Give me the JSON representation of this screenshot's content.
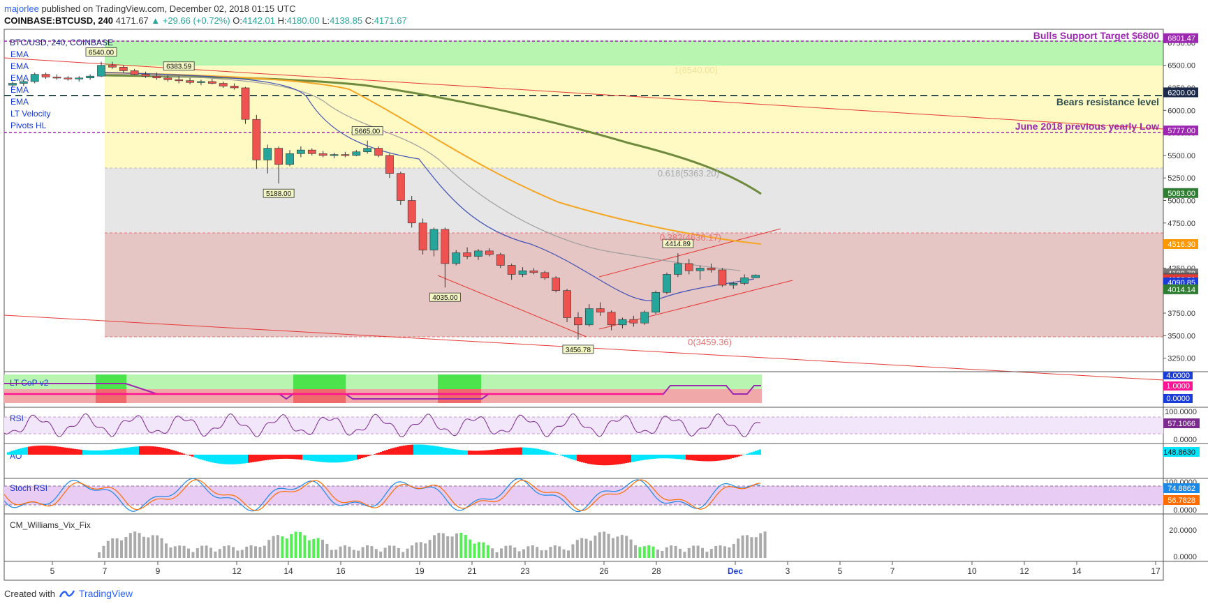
{
  "header": {
    "author": "majorlee",
    "published": "published on TradingView.com, December 02, 2018 01:15 UTC",
    "symbol": "COINBASE:BTCUSD, 240",
    "last": "4171.67",
    "change": "▲ +29.66 (+0.72%)",
    "o_label": "O:",
    "o": "4142.01",
    "h_label": "H:",
    "h": "4180.00",
    "l_label": "L:",
    "l": "4138.85",
    "c_label": "C:",
    "c": "4171.67"
  },
  "footer": {
    "created_with": "Created with",
    "brand": "TradingView"
  },
  "chart_data": {
    "type": "candlestick",
    "title": "BTC/USD, 240, COINBASE",
    "legend": [
      "EMA",
      "EMA",
      "EMA",
      "EMA",
      "EMA",
      "LT Velocity",
      "Pivots HL"
    ],
    "ylim": [
      3100,
      6900
    ],
    "price_ticks": [
      "6750.00",
      "6500.00",
      "6250.00",
      "6000.00",
      "5750.00",
      "5500.00",
      "5250.00",
      "5000.00",
      "4750.00",
      "4500.00",
      "4250.00",
      "4000.00",
      "3750.00",
      "3500.00",
      "3250.00"
    ],
    "price_tick_values": [
      6750,
      6500,
      6250,
      6000,
      5750,
      5500,
      5250,
      5000,
      4750,
      4500,
      4250,
      4000,
      3750,
      3500,
      3250
    ],
    "x_ticks": [
      "5",
      "7",
      "9",
      "12",
      "14",
      "16",
      "19",
      "21",
      "23",
      "26",
      "28",
      "Dec",
      "3",
      "5",
      "7",
      "10",
      "12",
      "14",
      "17"
    ],
    "annotations": {
      "bulls": "Bulls Support Target $6800",
      "bears": "Bears resistance level",
      "june": "June 2018 previous yearly Low",
      "fib1": "1(6540.00)",
      "fib618": "0.618(5363.20)",
      "fib382": "0.382(4636.17)",
      "fib0": "0(3459.36)"
    },
    "pivot_labels": [
      "6540.00",
      "6383.59",
      "5188.00",
      "5665.00",
      "4035.00",
      "3456.78",
      "4414.89"
    ],
    "pivot_values": [
      6540,
      6383.59,
      5188,
      5665,
      4035,
      3456.78,
      4414.89
    ],
    "price_badges": [
      {
        "text": "6801.47",
        "value": 6801.47,
        "color": "#9c27b0"
      },
      {
        "text": "6200.00",
        "value": 6200,
        "color": "#1b2a4a"
      },
      {
        "text": "5777.00",
        "value": 5777,
        "color": "#9c27b0"
      },
      {
        "text": "5083.00",
        "value": 5083,
        "color": "#2e7d32"
      },
      {
        "text": "4516.30",
        "value": 4516.3,
        "color": "#ff9800"
      },
      {
        "text": "4189.78",
        "value": 4189.78,
        "color": "#777777"
      },
      {
        "text": "4142.01",
        "value": 4142.01,
        "color": "#555555"
      },
      {
        "text": "4126.31",
        "value": 4126.31,
        "color": "#e53935"
      },
      {
        "text": "4090.85",
        "value": 4090.85,
        "color": "#1a3cd8"
      },
      {
        "text": "4014.14",
        "value": 4014.14,
        "color": "#2e7d32"
      }
    ],
    "candles": [
      [
        6280,
        6320,
        6260,
        6300
      ],
      [
        6300,
        6340,
        6270,
        6320
      ],
      [
        6320,
        6420,
        6300,
        6400
      ],
      [
        6400,
        6420,
        6350,
        6370
      ],
      [
        6370,
        6400,
        6340,
        6360
      ],
      [
        6360,
        6380,
        6330,
        6350
      ],
      [
        6350,
        6380,
        6320,
        6360
      ],
      [
        6360,
        6400,
        6340,
        6380
      ],
      [
        6380,
        6540,
        6370,
        6500
      ],
      [
        6500,
        6540,
        6460,
        6480
      ],
      [
        6480,
        6500,
        6420,
        6440
      ],
      [
        6440,
        6460,
        6390,
        6400
      ],
      [
        6400,
        6430,
        6360,
        6380
      ],
      [
        6380,
        6420,
        6340,
        6360
      ],
      [
        6360,
        6390,
        6320,
        6340
      ],
      [
        6340,
        6383,
        6300,
        6330
      ],
      [
        6330,
        6360,
        6290,
        6310
      ],
      [
        6310,
        6340,
        6280,
        6320
      ],
      [
        6320,
        6350,
        6290,
        6300
      ],
      [
        6300,
        6320,
        6250,
        6270
      ],
      [
        6270,
        6300,
        6230,
        6250
      ],
      [
        6250,
        6260,
        5850,
        5900
      ],
      [
        5900,
        5950,
        5350,
        5450
      ],
      [
        5450,
        5620,
        5300,
        5580
      ],
      [
        5580,
        5600,
        5188,
        5400
      ],
      [
        5400,
        5560,
        5380,
        5520
      ],
      [
        5520,
        5600,
        5480,
        5560
      ],
      [
        5560,
        5580,
        5500,
        5520
      ],
      [
        5520,
        5550,
        5480,
        5500
      ],
      [
        5500,
        5530,
        5470,
        5510
      ],
      [
        5510,
        5540,
        5480,
        5500
      ],
      [
        5500,
        5560,
        5490,
        5540
      ],
      [
        5540,
        5665,
        5520,
        5580
      ],
      [
        5580,
        5600,
        5480,
        5500
      ],
      [
        5500,
        5520,
        5250,
        5300
      ],
      [
        5300,
        5320,
        4950,
        5000
      ],
      [
        5000,
        5050,
        4700,
        4750
      ],
      [
        4750,
        4800,
        4400,
        4450
      ],
      [
        4450,
        4700,
        4380,
        4680
      ],
      [
        4680,
        4700,
        4035,
        4300
      ],
      [
        4300,
        4450,
        4280,
        4420
      ],
      [
        4420,
        4480,
        4350,
        4380
      ],
      [
        4380,
        4460,
        4340,
        4440
      ],
      [
        4440,
        4470,
        4380,
        4400
      ],
      [
        4400,
        4420,
        4250,
        4280
      ],
      [
        4280,
        4300,
        4120,
        4180
      ],
      [
        4180,
        4260,
        4150,
        4220
      ],
      [
        4220,
        4250,
        4180,
        4200
      ],
      [
        4200,
        4220,
        4120,
        4140
      ],
      [
        4140,
        4160,
        3980,
        4000
      ],
      [
        4000,
        4020,
        3650,
        3700
      ],
      [
        3700,
        3760,
        3456.78,
        3620
      ],
      [
        3620,
        3850,
        3600,
        3800
      ],
      [
        3800,
        3870,
        3720,
        3760
      ],
      [
        3760,
        3780,
        3560,
        3620
      ],
      [
        3620,
        3700,
        3580,
        3680
      ],
      [
        3680,
        3720,
        3600,
        3640
      ],
      [
        3640,
        3780,
        3620,
        3760
      ],
      [
        3760,
        4000,
        3740,
        3980
      ],
      [
        3980,
        4200,
        3960,
        4180
      ],
      [
        4180,
        4414.89,
        4150,
        4300
      ],
      [
        4300,
        4350,
        4180,
        4220
      ],
      [
        4220,
        4280,
        4120,
        4250
      ],
      [
        4250,
        4300,
        4200,
        4230
      ],
      [
        4230,
        4250,
        4040,
        4060
      ],
      [
        4060,
        4100,
        4020,
        4080
      ],
      [
        4080,
        4180,
        4060,
        4142
      ],
      [
        4142,
        4180,
        4138.85,
        4171.67
      ]
    ]
  },
  "panes": {
    "ltcop": {
      "title": "LT CoP v2",
      "badges": [
        {
          "text": "4.0000",
          "color": "#1a3cd8"
        },
        {
          "text": "1.0000",
          "color": "#ff1493"
        },
        {
          "text": "0.0000",
          "color": "#1a3cd8"
        }
      ]
    },
    "rsi": {
      "title": "RSI",
      "ticks": [
        "100.0000",
        "0.0000"
      ],
      "badge": "57.1066"
    },
    "ao": {
      "title": "AO",
      "badge": "148.8630"
    },
    "stoch": {
      "title": "Stoch RSI",
      "ticks": [
        "100.0000",
        "0.0000"
      ],
      "badges": [
        {
          "text": "74.8862",
          "color": "#1e88e5"
        },
        {
          "text": "56.7828",
          "color": "#ff6d00"
        }
      ]
    },
    "vix": {
      "title": "CM_Williams_Vix_Fix",
      "ticks": [
        "20.0000",
        "0.0000"
      ]
    }
  },
  "colors": {
    "up": "#26a69a",
    "down": "#ef5350",
    "fibGreen": "#b7f5b0",
    "fibYellow": "#fff9c4",
    "fibGrey": "#e6e6e6",
    "fibRed": "#e6c5c5"
  }
}
